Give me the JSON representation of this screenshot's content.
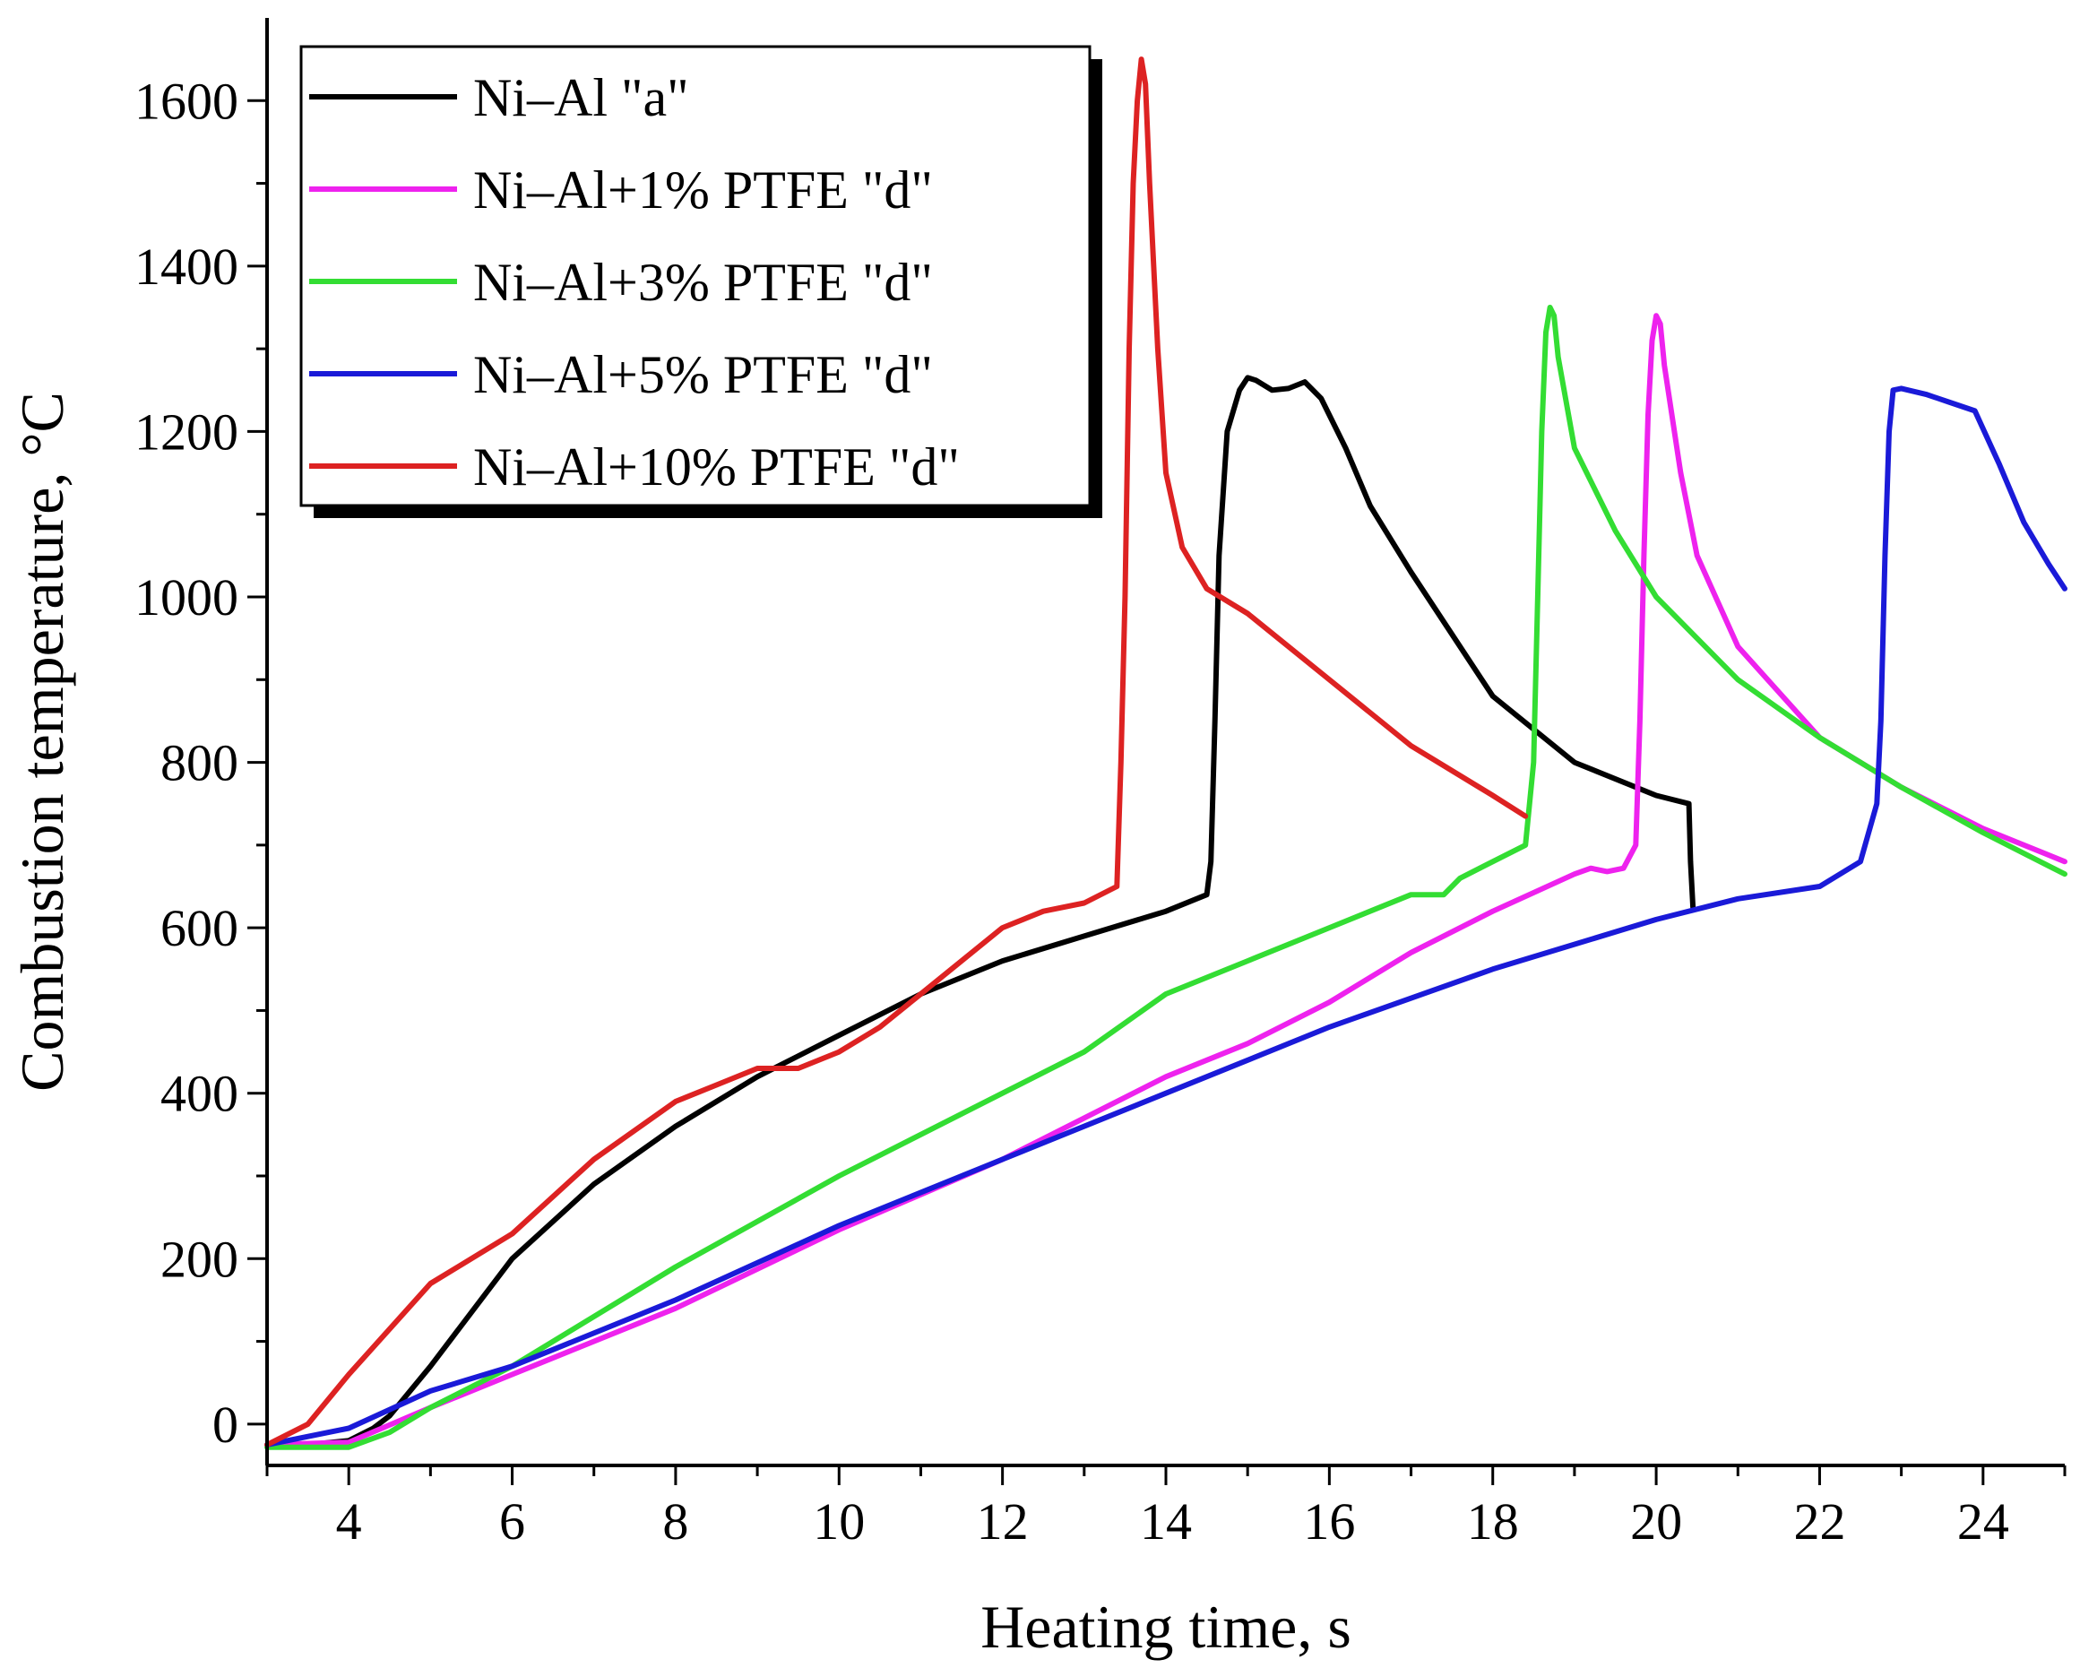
{
  "chart_data": {
    "type": "line",
    "title": "",
    "xlabel": "Heating time, s",
    "ylabel": "Combustion temperature, °C",
    "xlim": [
      3,
      25
    ],
    "ylim": [
      -50,
      1700
    ],
    "xticks": [
      4,
      6,
      8,
      10,
      12,
      14,
      16,
      18,
      20,
      22,
      24
    ],
    "xtick_labels": [
      "4",
      "6",
      "8",
      "10",
      "12",
      "14",
      "16",
      "18",
      "20",
      "22",
      "24"
    ],
    "yticks": [
      0,
      200,
      400,
      600,
      800,
      1000,
      1200,
      1400,
      1600
    ],
    "ytick_labels": [
      "0",
      "200",
      "400",
      "600",
      "800",
      "1000",
      "1200",
      "1400",
      "1600"
    ],
    "grid": false,
    "legend_position": "top-left",
    "series": [
      {
        "name": "Ni–Al \"a\"",
        "color": "#000000",
        "x": [
          3.0,
          3.5,
          4.0,
          4.3,
          4.5,
          5.0,
          6.0,
          7.0,
          8.0,
          9.0,
          10.0,
          11.0,
          12.0,
          13.0,
          14.0,
          14.5,
          14.55,
          14.6,
          14.65,
          14.75,
          14.9,
          15.0,
          15.1,
          15.3,
          15.5,
          15.7,
          15.9,
          16.2,
          16.5,
          17.0,
          18.0,
          19.0,
          20.0,
          20.4,
          20.42,
          20.45
        ],
        "values": [
          -25,
          -25,
          -20,
          -5,
          10,
          70,
          200,
          290,
          360,
          420,
          470,
          520,
          560,
          590,
          620,
          640,
          680,
          850,
          1050,
          1200,
          1250,
          1265,
          1262,
          1250,
          1252,
          1260,
          1240,
          1180,
          1110,
          1030,
          880,
          800,
          760,
          750,
          680,
          625
        ]
      },
      {
        "name": "Ni–Al+1% PTFE \"d\"",
        "color": "#ee22ee",
        "x": [
          3.0,
          4.0,
          5.0,
          6.0,
          8.0,
          10.0,
          12.0,
          14.0,
          15.0,
          16.0,
          17.0,
          18.0,
          19.0,
          19.2,
          19.4,
          19.6,
          19.75,
          19.8,
          19.85,
          19.9,
          19.95,
          20.0,
          20.05,
          20.1,
          20.3,
          20.5,
          21.0,
          22.0,
          23.0,
          24.0,
          25.0
        ],
        "values": [
          -25,
          -22,
          20,
          60,
          140,
          235,
          320,
          420,
          460,
          510,
          570,
          620,
          665,
          672,
          668,
          672,
          700,
          850,
          1050,
          1220,
          1310,
          1340,
          1330,
          1280,
          1150,
          1050,
          940,
          830,
          770,
          720,
          680
        ]
      },
      {
        "name": "Ni–Al+3% PTFE \"d\"",
        "color": "#33dd33",
        "x": [
          3.0,
          4.0,
          4.5,
          5.0,
          6.0,
          8.0,
          10.0,
          12.0,
          13.0,
          14.0,
          15.0,
          16.0,
          17.0,
          17.4,
          17.6,
          18.0,
          18.4,
          18.5,
          18.55,
          18.6,
          18.65,
          18.7,
          18.75,
          18.8,
          19.0,
          19.5,
          20.0,
          21.0,
          22.0,
          23.0,
          24.0,
          25.0
        ],
        "values": [
          -28,
          -28,
          -10,
          20,
          70,
          190,
          300,
          400,
          450,
          520,
          560,
          600,
          640,
          640,
          660,
          680,
          700,
          800,
          1000,
          1200,
          1320,
          1350,
          1340,
          1290,
          1180,
          1080,
          1000,
          900,
          830,
          770,
          715,
          665
        ]
      },
      {
        "name": "Ni–Al+5% PTFE \"d\"",
        "color": "#1a1ad8",
        "x": [
          3.0,
          4.0,
          5.0,
          6.0,
          8.0,
          10.0,
          12.0,
          14.0,
          16.0,
          18.0,
          20.0,
          21.0,
          22.0,
          22.5,
          22.7,
          22.75,
          22.8,
          22.85,
          22.9,
          23.0,
          23.3,
          23.6,
          23.9,
          24.2,
          24.5,
          24.8,
          25.0
        ],
        "values": [
          -25,
          -5,
          40,
          70,
          150,
          240,
          320,
          400,
          480,
          550,
          610,
          635,
          650,
          680,
          750,
          850,
          1050,
          1200,
          1250,
          1252,
          1245,
          1235,
          1225,
          1160,
          1090,
          1040,
          1010
        ]
      },
      {
        "name": "Ni–Al+10% PTFE \"d\"",
        "color": "#dd2222",
        "x": [
          3.0,
          3.5,
          4.0,
          5.0,
          6.0,
          7.0,
          8.0,
          8.5,
          9.0,
          9.5,
          10.0,
          10.5,
          11.0,
          12.0,
          12.5,
          13.0,
          13.4,
          13.45,
          13.5,
          13.55,
          13.6,
          13.65,
          13.7,
          13.75,
          13.8,
          13.9,
          14.0,
          14.2,
          14.5,
          15.0,
          16.0,
          17.0,
          18.0,
          18.4
        ],
        "values": [
          -25,
          0,
          60,
          170,
          230,
          320,
          390,
          410,
          430,
          430,
          450,
          480,
          520,
          600,
          620,
          630,
          650,
          800,
          1000,
          1300,
          1500,
          1600,
          1650,
          1620,
          1500,
          1300,
          1150,
          1060,
          1010,
          980,
          900,
          820,
          760,
          735
        ]
      }
    ]
  }
}
